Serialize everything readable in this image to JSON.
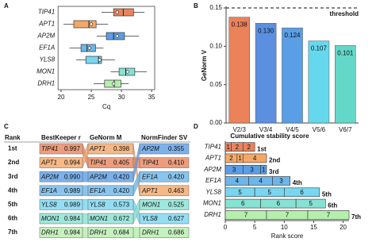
{
  "gene_colors": {
    "TIP41": "#e8845e",
    "APT1": "#f4a868",
    "AP2M": "#5b9ee6",
    "EF1A": "#6cb6ea",
    "YLS8": "#78d6f0",
    "MON1": "#86e2d2",
    "DRH1": "#b6eeae"
  },
  "chart_data": [
    {
      "panel": "A",
      "type": "boxplot",
      "categories": [
        "TIP41",
        "APT1",
        "AP2M",
        "EF1A",
        "YLS8",
        "MON1",
        "DRH1"
      ],
      "boxes": [
        {
          "min": 26.7,
          "q1": 28.7,
          "median": 30.3,
          "q3": 32.0,
          "max": 33.8,
          "mean": 29.3
        },
        {
          "min": 20.4,
          "q1": 22.1,
          "median": 24.6,
          "q3": 25.8,
          "max": 27.8,
          "mean": 25.0
        },
        {
          "min": 25.9,
          "q1": 27.5,
          "median": 28.7,
          "q3": 30.5,
          "max": 32.9,
          "mean": 29.3
        },
        {
          "min": 21.4,
          "q1": 23.3,
          "median": 24.3,
          "q3": 25.7,
          "max": 27.0,
          "mean": 24.7
        },
        {
          "min": 22.5,
          "q1": 24.1,
          "median": 26.2,
          "q3": 26.7,
          "max": 28.9,
          "mean": 26.4
        },
        {
          "min": 28.2,
          "q1": 29.6,
          "median": 30.7,
          "q3": 32.2,
          "max": 34.2,
          "mean": 31.0
        },
        {
          "min": 25.4,
          "q1": 27.2,
          "median": 28.8,
          "q3": 29.9,
          "max": 31.2,
          "mean": 28.7
        }
      ],
      "xlabel": "Cq",
      "xlim": [
        19.5,
        35.5
      ],
      "xticks": [
        20,
        25,
        30,
        35
      ]
    },
    {
      "panel": "B",
      "type": "bar",
      "categories": [
        "V2/3",
        "V3/4",
        "V4/5",
        "V5/6",
        "V6/7"
      ],
      "values": [
        0.138,
        0.13,
        0.124,
        0.107,
        0.101
      ],
      "value_labels": [
        "0.138",
        "0.130",
        "0.124",
        "0.107",
        "0.101"
      ],
      "colors": [
        "#ec825a",
        "#5b8fe0",
        "#5a9ee6",
        "#66d8ee",
        "#64d8c8"
      ],
      "ylabel": "GeNorm V",
      "ylim": [
        0,
        0.15
      ],
      "yticks": [
        {
          "value": 0,
          "label": "0.00"
        },
        0.05,
        {
          "value": 0.1,
          "label": "0.10"
        },
        0.15
      ],
      "threshold": {
        "value": 0.15,
        "label": "threshold"
      }
    },
    {
      "panel": "C",
      "type": "table",
      "rank_header": "Rank",
      "ranks": [
        "1st",
        "2nd",
        "3rd",
        "4th",
        "5th",
        "6th",
        "7th"
      ],
      "methods": [
        {
          "name": "BestKeeper r",
          "genes": [
            "TIP41",
            "APT1",
            "AP2M",
            "EF1A",
            "YLS8",
            "MON1",
            "DRH1"
          ],
          "values": [
            "0.997",
            "0.994",
            "0.990",
            "0.989",
            "0.989",
            "0.984",
            "0.984"
          ]
        },
        {
          "name": "GeNorm M",
          "genes": [
            "APT1",
            "TIP41",
            "AP2M",
            "EF1A",
            "YLS8",
            "MON1",
            "DRH1"
          ],
          "values": [
            "0.398",
            "0.405",
            "0.420",
            "0.420",
            "0.573",
            "0.672",
            "0.684"
          ]
        },
        {
          "name": "NormFinder SV",
          "genes": [
            "AP2M",
            "TIP41",
            "EF1A",
            "APT1",
            "MON1",
            "YLS8",
            "DRH1"
          ],
          "values": [
            "0.355",
            "0.410",
            "0.420",
            "0.463",
            "0.525",
            "0.627",
            "0.686"
          ]
        }
      ]
    },
    {
      "panel": "D",
      "type": "stacked-bar",
      "title": "Cumulative stability score",
      "categories": [
        "TIP41",
        "APT1",
        "AP2M",
        "EF1A",
        "YLS8",
        "MON1",
        "DRH1"
      ],
      "segments": [
        [
          1,
          2,
          2
        ],
        [
          2,
          1,
          4
        ],
        [
          3,
          3,
          1
        ],
        [
          4,
          4,
          3
        ],
        [
          5,
          5,
          6
        ],
        [
          6,
          6,
          5
        ],
        [
          7,
          7,
          7
        ]
      ],
      "rank_labels": [
        "1st",
        "2nd",
        "3rd",
        "4th",
        "5th",
        "6th",
        "7th"
      ],
      "xlabel": "Rank score",
      "xlim": [
        0,
        21
      ],
      "xticks": [
        0,
        5,
        10,
        15,
        20
      ]
    }
  ]
}
